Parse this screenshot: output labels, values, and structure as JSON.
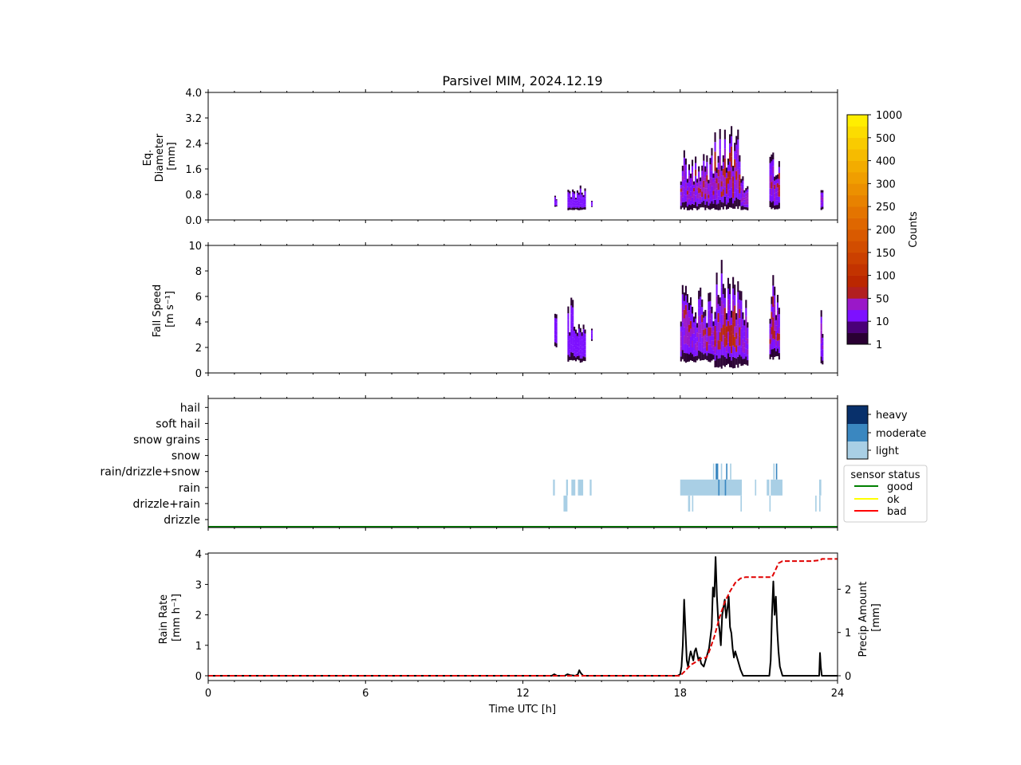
{
  "title": "Parsivel MIM, 2024.12.19",
  "colors": {
    "axis": "#000000",
    "rain_rate_line": "#000000",
    "precip_amount_line": "#e00000",
    "status_good": "#008000",
    "status_ok": "#ffff00",
    "status_bad": "#ff0000",
    "intensity_light": "#a9cfe5",
    "intensity_moderate": "#3a87c0",
    "intensity_heavy": "#08306b",
    "counts_cmap": [
      "#2a0033",
      "#4a0078",
      "#7d10ff",
      "#9a18c8",
      "#b21f20",
      "#bb2700",
      "#c33300",
      "#cb4000",
      "#d24d00",
      "#d95a00",
      "#df6700",
      "#e47400",
      "#e88200",
      "#ec9000",
      "#f09e00",
      "#f3ac00",
      "#f6bb00",
      "#f9cb00",
      "#fcdc00",
      "#ffee00"
    ]
  },
  "chart_data": [
    {
      "type": "heatmap",
      "name": "diameter",
      "ylabel": [
        "Eq.",
        "Diameter",
        "[mm]"
      ],
      "xlim": [
        0,
        24
      ],
      "ylim": [
        0,
        4.0
      ],
      "yticks": [
        "0.0",
        "0.8",
        "1.6",
        "2.4",
        "3.2",
        "4.0"
      ],
      "ytick_values": [
        0,
        0.8,
        1.6,
        2.4,
        3.2,
        4.0
      ],
      "xticks_shown": false,
      "blobs": [
        {
          "t0": 13.2,
          "t1": 13.3,
          "lo": 0.4,
          "hi": 0.9,
          "core": 0
        },
        {
          "t0": 13.7,
          "t1": 14.4,
          "lo": 0.3,
          "hi": 1.1,
          "core": 0
        },
        {
          "t0": 14.6,
          "t1": 14.65,
          "lo": 0.4,
          "hi": 0.75,
          "core": 0
        },
        {
          "t0": 18.0,
          "t1": 19.3,
          "lo": 0.3,
          "hi": 2.3,
          "core": 0.6
        },
        {
          "t0": 19.3,
          "t1": 20.3,
          "lo": 0.3,
          "hi": 3.0,
          "core": 1.0
        },
        {
          "t0": 20.3,
          "t1": 20.6,
          "lo": 0.3,
          "hi": 1.7,
          "core": 0.5
        },
        {
          "t0": 21.4,
          "t1": 21.8,
          "lo": 0.3,
          "hi": 2.5,
          "core": 0.8
        },
        {
          "t0": 23.35,
          "t1": 23.45,
          "lo": 0.3,
          "hi": 1.2,
          "core": 0.5
        }
      ]
    },
    {
      "type": "heatmap",
      "name": "fall_speed",
      "ylabel": [
        "Fall Speed",
        "[m s⁻¹]"
      ],
      "xlim": [
        0,
        24
      ],
      "ylim": [
        0,
        10
      ],
      "yticks": [
        "0",
        "2",
        "4",
        "6",
        "8",
        "10"
      ],
      "ytick_values": [
        0,
        2,
        4,
        6,
        8,
        10
      ],
      "xticks_shown": false,
      "blobs": [
        {
          "t0": 13.2,
          "t1": 13.3,
          "lo": 2.0,
          "hi": 5.0,
          "core": 0
        },
        {
          "t0": 13.7,
          "t1": 14.4,
          "lo": 0.8,
          "hi": 6.0,
          "core": 0
        },
        {
          "t0": 14.6,
          "t1": 14.65,
          "lo": 2.5,
          "hi": 3.5,
          "core": 0
        },
        {
          "t0": 18.0,
          "t1": 19.3,
          "lo": 0.8,
          "hi": 7.0,
          "core": 0.6
        },
        {
          "t0": 19.3,
          "t1": 20.3,
          "lo": 0.3,
          "hi": 9.0,
          "core": 1.0
        },
        {
          "t0": 20.3,
          "t1": 20.6,
          "lo": 0.5,
          "hi": 6.5,
          "core": 0.5
        },
        {
          "t0": 21.4,
          "t1": 21.8,
          "lo": 1.0,
          "hi": 8.0,
          "core": 0.8
        },
        {
          "t0": 23.35,
          "t1": 23.45,
          "lo": 0.5,
          "hi": 6.0,
          "core": 0.5
        }
      ]
    },
    {
      "type": "heatmap",
      "name": "precip_type",
      "categories": [
        "drizzle",
        "drizzle+rain",
        "rain",
        "rain/drizzle+snow",
        "snow",
        "snow grains",
        "soft hail",
        "hail"
      ],
      "xlim": [
        0,
        24
      ],
      "xticks_shown": false,
      "segments": [
        {
          "cat": "rain",
          "t0": 13.15,
          "t1": 13.22,
          "level": "light"
        },
        {
          "cat": "rain",
          "t0": 13.65,
          "t1": 13.72,
          "level": "light"
        },
        {
          "cat": "rain",
          "t0": 13.85,
          "t1": 14.0,
          "level": "light"
        },
        {
          "cat": "rain",
          "t0": 14.1,
          "t1": 14.3,
          "level": "light"
        },
        {
          "cat": "rain",
          "t0": 14.55,
          "t1": 14.62,
          "level": "light"
        },
        {
          "cat": "rain",
          "t0": 18.0,
          "t1": 20.35,
          "level": "light"
        },
        {
          "cat": "rain",
          "t0": 19.45,
          "t1": 19.5,
          "level": "moderate"
        },
        {
          "cat": "rain",
          "t0": 19.7,
          "t1": 19.75,
          "level": "moderate"
        },
        {
          "cat": "rain",
          "t0": 20.85,
          "t1": 20.9,
          "level": "light"
        },
        {
          "cat": "rain",
          "t0": 21.3,
          "t1": 21.4,
          "level": "light"
        },
        {
          "cat": "rain",
          "t0": 21.45,
          "t1": 21.9,
          "level": "light"
        },
        {
          "cat": "rain",
          "t0": 23.3,
          "t1": 23.38,
          "level": "light"
        },
        {
          "cat": "rain/drizzle+snow",
          "t0": 19.25,
          "t1": 19.3,
          "level": "light"
        },
        {
          "cat": "rain/drizzle+snow",
          "t0": 19.35,
          "t1": 19.45,
          "level": "moderate"
        },
        {
          "cat": "rain/drizzle+snow",
          "t0": 19.55,
          "t1": 19.6,
          "level": "light"
        },
        {
          "cat": "rain/drizzle+snow",
          "t0": 19.75,
          "t1": 19.8,
          "level": "moderate"
        },
        {
          "cat": "rain/drizzle+snow",
          "t0": 19.9,
          "t1": 19.95,
          "level": "light"
        },
        {
          "cat": "rain/drizzle+snow",
          "t0": 21.55,
          "t1": 21.6,
          "level": "light"
        },
        {
          "cat": "rain/drizzle+snow",
          "t0": 21.65,
          "t1": 21.7,
          "level": "moderate"
        },
        {
          "cat": "drizzle+rain",
          "t0": 13.55,
          "t1": 13.7,
          "level": "light"
        },
        {
          "cat": "drizzle+rain",
          "t0": 18.3,
          "t1": 18.38,
          "level": "light"
        },
        {
          "cat": "drizzle+rain",
          "t0": 18.45,
          "t1": 18.5,
          "level": "light"
        },
        {
          "cat": "drizzle+rain",
          "t0": 20.3,
          "t1": 20.35,
          "level": "light"
        },
        {
          "cat": "drizzle+rain",
          "t0": 21.4,
          "t1": 21.45,
          "level": "light"
        },
        {
          "cat": "drizzle+rain",
          "t0": 23.15,
          "t1": 23.2,
          "level": "light"
        },
        {
          "cat": "drizzle+rain",
          "t0": 23.3,
          "t1": 23.35,
          "level": "light"
        }
      ],
      "intensity_legend": [
        "heavy",
        "moderate",
        "light"
      ],
      "status_legend_title": "sensor status",
      "status_legend": [
        "good",
        "ok",
        "bad"
      ],
      "status_series": {
        "status": "good",
        "t0": 0,
        "t1": 24
      }
    },
    {
      "type": "line",
      "name": "rain",
      "xlabel": "Time UTC [h]",
      "ylabel": [
        "Rain Rate",
        "[mm h⁻¹]"
      ],
      "y2label": [
        "Precip Amount",
        "[mm]"
      ],
      "xlim": [
        0,
        24
      ],
      "xticks": [
        "0",
        "6",
        "12",
        "18",
        "24"
      ],
      "xtick_values": [
        0,
        6,
        12,
        18,
        24
      ],
      "ylim": [
        0,
        4.1
      ],
      "yticks": [
        "0",
        "1",
        "2",
        "3",
        "4"
      ],
      "ytick_values": [
        0,
        1,
        2,
        3,
        4
      ],
      "y2lim": [
        0,
        2.85
      ],
      "y2ticks": [
        "0",
        "1",
        "2"
      ],
      "y2tick_values": [
        0,
        1,
        2
      ],
      "series": [
        {
          "role": "rain_rate",
          "x": [
            0,
            13.0,
            13.1,
            13.2,
            13.3,
            13.6,
            13.7,
            13.8,
            14.0,
            14.1,
            14.15,
            14.2,
            14.3,
            17.9,
            18.0,
            18.05,
            18.1,
            18.15,
            18.2,
            18.25,
            18.3,
            18.35,
            18.4,
            18.5,
            18.55,
            18.6,
            18.7,
            18.75,
            18.8,
            18.9,
            19.0,
            19.1,
            19.2,
            19.25,
            19.3,
            19.35,
            19.4,
            19.45,
            19.5,
            19.55,
            19.6,
            19.7,
            19.75,
            19.8,
            19.85,
            19.9,
            19.95,
            20.0,
            20.05,
            20.1,
            20.2,
            20.3,
            20.4,
            20.5,
            21.4,
            21.45,
            21.5,
            21.55,
            21.6,
            21.65,
            21.7,
            21.75,
            21.8,
            21.9,
            23.3,
            23.33,
            23.36,
            23.4,
            24.0
          ],
          "y": [
            0,
            0,
            0,
            0.05,
            0,
            0,
            0.05,
            0.02,
            0,
            0.05,
            0.18,
            0.1,
            0,
            0,
            0.05,
            0.3,
            1.0,
            2.5,
            1.5,
            0.5,
            0.3,
            0.6,
            0.8,
            0.5,
            0.8,
            0.9,
            0.5,
            0.6,
            0.4,
            0.3,
            0.6,
            0.9,
            1.6,
            2.9,
            2.6,
            3.9,
            2.6,
            1.8,
            1.5,
            1.0,
            2.0,
            2.5,
            1.9,
            2.2,
            2.6,
            1.6,
            1.4,
            0.9,
            0.6,
            0.8,
            0.5,
            0.2,
            0.0,
            0.0,
            0.0,
            0.5,
            2.0,
            3.1,
            2.0,
            2.6,
            1.5,
            0.8,
            0.3,
            0.0,
            0.0,
            0.75,
            0.3,
            0.0,
            0.0
          ]
        },
        {
          "role": "precip_amount",
          "x": [
            0,
            18.0,
            18.2,
            18.4,
            18.6,
            18.8,
            19.0,
            19.1,
            19.3,
            19.5,
            19.7,
            19.9,
            20.1,
            20.3,
            20.5,
            21.0,
            21.5,
            21.6,
            21.75,
            21.9,
            22.5,
            23.0,
            23.35,
            23.4,
            24.0
          ],
          "y": [
            0,
            0,
            0.12,
            0.25,
            0.32,
            0.4,
            0.42,
            0.55,
            0.9,
            1.35,
            1.7,
            1.95,
            2.15,
            2.25,
            2.28,
            2.28,
            2.28,
            2.4,
            2.6,
            2.65,
            2.65,
            2.65,
            2.67,
            2.7,
            2.7
          ]
        }
      ]
    }
  ],
  "colorbar": {
    "label": "Counts",
    "ticks": [
      "1",
      "10",
      "50",
      "100",
      "150",
      "200",
      "250",
      "300",
      "400",
      "500",
      "1000"
    ]
  }
}
